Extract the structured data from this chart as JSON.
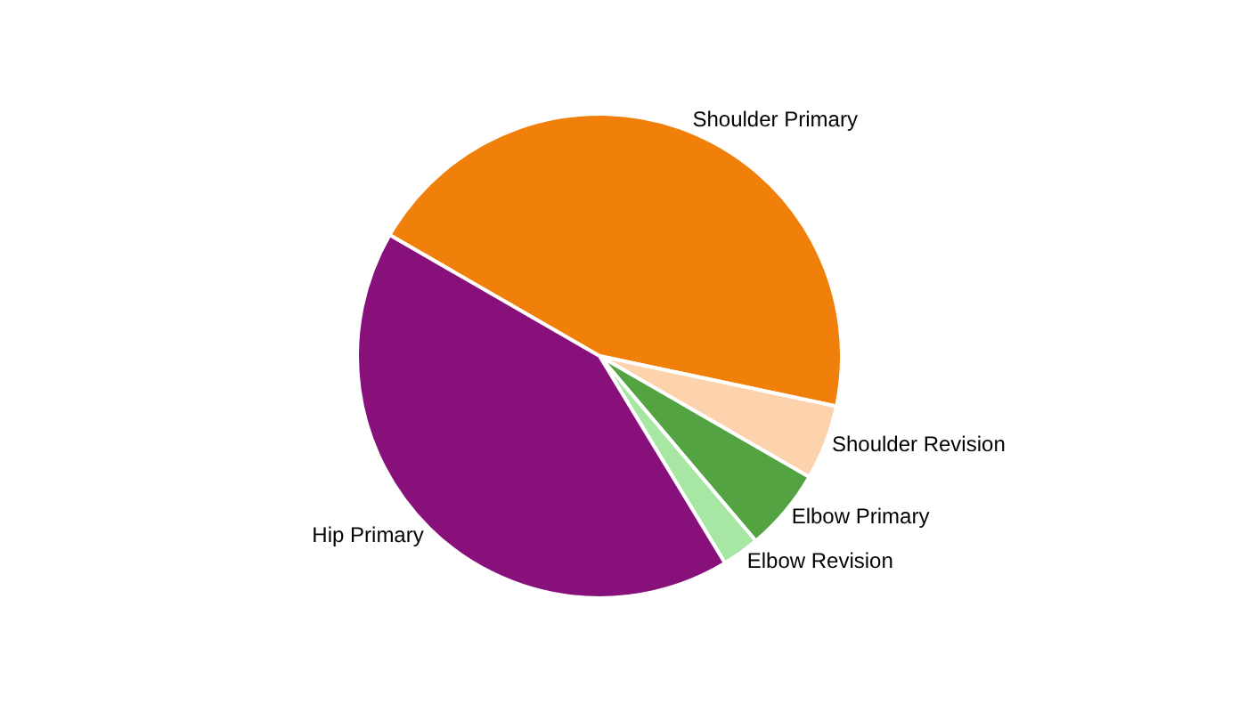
{
  "chart_data": {
    "type": "pie",
    "categories": [
      "Shoulder Primary",
      "Shoulder Revision",
      "Elbow Primary",
      "Elbow Revision",
      "Hip Primary"
    ],
    "values": [
      45,
      5,
      5.5,
      2.5,
      42
    ],
    "colors": [
      "#f08009",
      "#fdd3ae",
      "#53a343",
      "#a8e6a3",
      "#88107a"
    ],
    "legend": false
  }
}
